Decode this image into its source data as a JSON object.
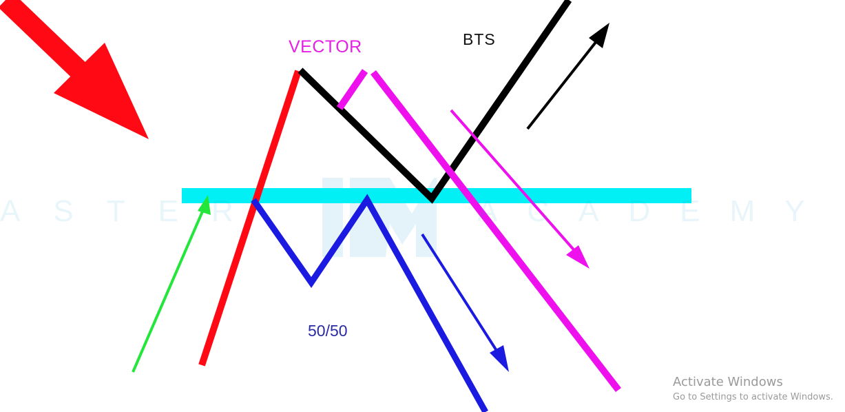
{
  "labels": {
    "vector": "VECTOR",
    "bts": "BTS",
    "fifty_fifty": "50/50"
  },
  "watermark": {
    "left_text": "ASTER",
    "right_text": "ACADEMY"
  },
  "os_notice": {
    "title": "Activate Windows",
    "subtitle": "Go to Settings to activate Windows."
  },
  "colors": {
    "red": "#ff0a14",
    "black": "#000000",
    "magenta": "#ee11ee",
    "blue": "#1a1ae0",
    "green": "#22e63a",
    "cyan": "#00f0f5"
  }
}
